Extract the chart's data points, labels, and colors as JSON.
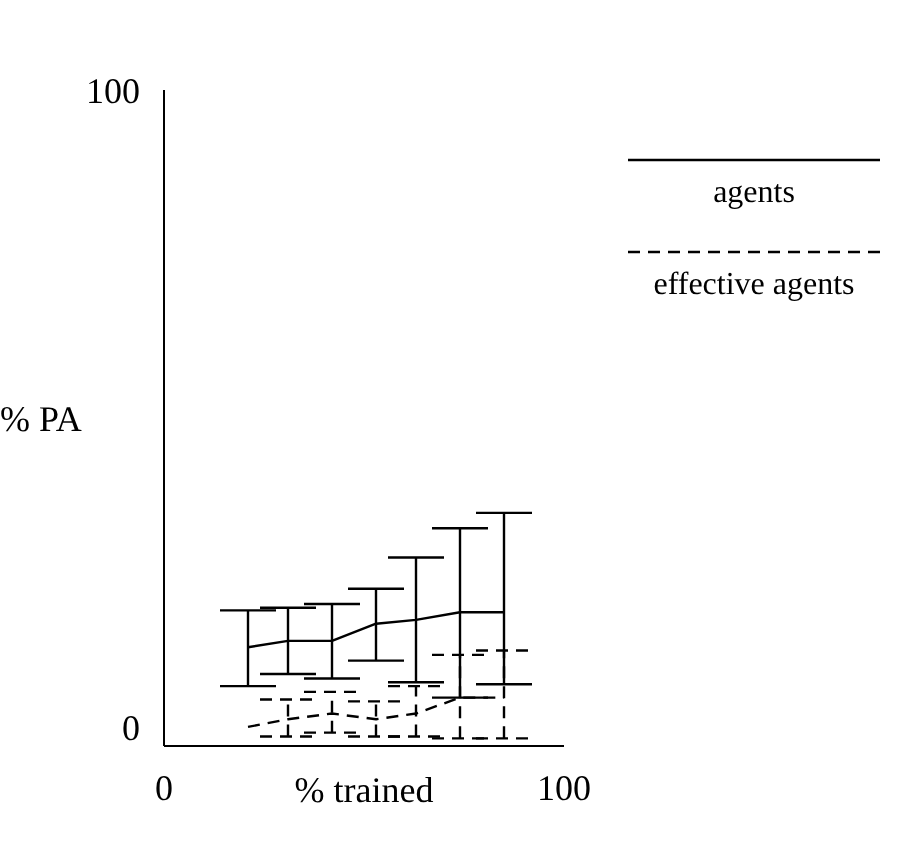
{
  "chart_data": {
    "type": "line",
    "xlabel": "% trained",
    "ylabel": "% PA",
    "x": [
      21,
      31,
      42,
      53,
      63,
      74,
      85
    ],
    "xlim": [
      0,
      100
    ],
    "xticks": [
      0,
      100
    ],
    "ylim": [
      -3,
      100
    ],
    "yticks": [
      0,
      100
    ],
    "grid": false,
    "legend": "top right",
    "marker": "none",
    "series": [
      {
        "name": "agents",
        "color": "#000000",
        "line_style": "solid",
        "values": [
          12.5,
          13.5,
          13.5,
          16.2,
          16.8,
          18.0,
          18.0
        ],
        "errors": [
          [
            6.4,
            18.3
          ],
          [
            8.3,
            18.7
          ],
          [
            7.6,
            19.3
          ],
          [
            10.4,
            21.7
          ],
          [
            7.0,
            26.6
          ],
          [
            4.6,
            31.2
          ],
          [
            6.7,
            33.6
          ]
        ]
      },
      {
        "name": "effective agents",
        "color": "#000000",
        "line_style": "dashed",
        "values": [
          0,
          1.2,
          2.1,
          1.2,
          2.1,
          4.6,
          4.6
        ],
        "errors": [
          null,
          [
            -1.5,
            4.3
          ],
          [
            -0.9,
            5.5
          ],
          [
            -1.5,
            4.0
          ],
          [
            -1.5,
            6.4
          ],
          [
            -1.8,
            11.3
          ],
          [
            -1.8,
            12.0
          ]
        ]
      }
    ]
  }
}
